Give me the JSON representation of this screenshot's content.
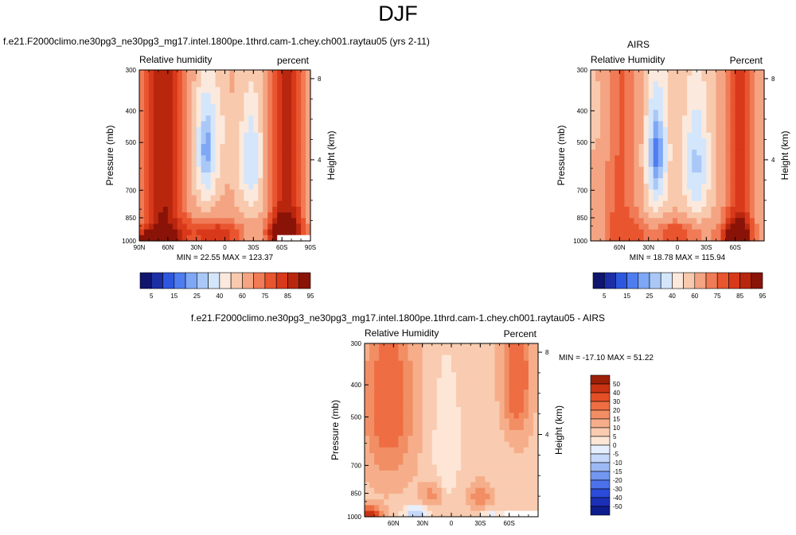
{
  "page_title": "DJF",
  "colors": {
    "rh_levels": [
      "#10156e",
      "#1c2ea6",
      "#2e57e0",
      "#4f7df0",
      "#7ea7f5",
      "#aac8f7",
      "#d4e6fb",
      "#fbe9dd",
      "#f8c9ad",
      "#f4a482",
      "#f07b56",
      "#e8552e",
      "#d8391a",
      "#b8260e",
      "#8a1308"
    ],
    "diff_levels": [
      "#0d1d8c",
      "#1b2fb7",
      "#2b4bd8",
      "#4b72ea",
      "#7297f1",
      "#9db9f5",
      "#c5d7fa",
      "#e6effd",
      "#fde6d6",
      "#f9cbb0",
      "#f6ae8a",
      "#f28e64",
      "#ee6d43",
      "#e44f26",
      "#c93314",
      "#9c1f08"
    ]
  },
  "chart_data": [
    {
      "type": "heatmap",
      "title": "f.e21.F2000climo.ne30pg3_ne30pg3_mg17.intel.1800pe.1thrd.cam-1.chey.ch001.raytau05 (yrs 2-11)",
      "left_label": "Relative humidity",
      "right_label": "percent",
      "ylabel": "Pressure (mb)",
      "ylabel2": "Height (km)",
      "yticks": [
        "300",
        "400",
        "500",
        "700",
        "850",
        "1000"
      ],
      "ytick_values": [
        300,
        400,
        500,
        700,
        850,
        1000
      ],
      "ylim": [
        1000,
        300
      ],
      "yticks2": [
        "8",
        "4"
      ],
      "ytick2_values": [
        8,
        4
      ],
      "xticks": [
        "90N",
        "60N",
        "30N",
        "0",
        "30S",
        "60S",
        "90S"
      ],
      "xtick_values": [
        90,
        60,
        30,
        0,
        -30,
        -60,
        -90
      ],
      "xlim": [
        90,
        -90
      ],
      "stats_text": "MIN =  22.55   MAX = 123.37",
      "colorbar_labels": [
        "5",
        "15",
        "25",
        "40",
        "60",
        "75",
        "85",
        "95"
      ],
      "blank_region": [
        -55,
        -90,
        960,
        1000
      ]
    },
    {
      "type": "heatmap",
      "title": "AIRS",
      "left_label": "Relative Humidity",
      "right_label": "Percent",
      "ylabel": "Pressure (mb)",
      "ylabel2": "Height (km)",
      "yticks": [
        "300",
        "400",
        "500",
        "700",
        "850",
        "1000"
      ],
      "ytick_values": [
        300,
        400,
        500,
        700,
        850,
        1000
      ],
      "ylim": [
        1000,
        300
      ],
      "yticks2": [
        "8",
        "4"
      ],
      "ytick2_values": [
        8,
        4
      ],
      "xticks": [
        "60N",
        "30N",
        "0",
        "30S",
        "60S"
      ],
      "xtick_values": [
        60,
        30,
        0,
        -30,
        -60
      ],
      "xlim": [
        90,
        -90
      ],
      "stats_text": "MIN =  18.78   MAX = 115.94",
      "colorbar_labels": [
        "5",
        "15",
        "25",
        "40",
        "60",
        "75",
        "85",
        "95"
      ]
    },
    {
      "type": "heatmap",
      "title": "f.e21.F2000climo.ne30pg3_ne30pg3_mg17.intel.1800pe.1thrd.cam-1.chey.ch001.raytau05 - AIRS",
      "left_label": "Relative Humidity",
      "right_label": "Percent",
      "ylabel": "Pressure (mb)",
      "ylabel2": "Height (km)",
      "yticks": [
        "300",
        "400",
        "500",
        "700",
        "850",
        "1000"
      ],
      "ytick_values": [
        300,
        400,
        500,
        700,
        850,
        1000
      ],
      "ylim": [
        1000,
        300
      ],
      "yticks2": [
        "8",
        "4"
      ],
      "ytick2_values": [
        8,
        4
      ],
      "xticks": [
        "60N",
        "30N",
        "0",
        "30S",
        "60S"
      ],
      "xtick_values": [
        60,
        30,
        0,
        -30,
        -60
      ],
      "xlim": [
        90,
        -90
      ],
      "stats_text": "MIN = -17.10   MAX =  51.22",
      "colorbar_labels": [
        "50",
        "40",
        "30",
        "20",
        "15",
        "10",
        "5",
        "0",
        "-5",
        "-10",
        "-15",
        "-20",
        "-30",
        "-40",
        "-50"
      ],
      "blank_region": [
        -55,
        -90,
        960,
        1000
      ]
    }
  ]
}
